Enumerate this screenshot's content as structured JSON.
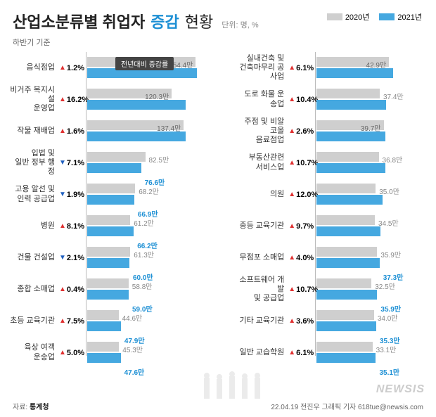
{
  "title": {
    "main": "산업소분류별 취업자",
    "accent": "증감",
    "rest": "현황",
    "unit": "단위: 명, %",
    "subheader": "하반기 기준"
  },
  "legend": {
    "y2020": {
      "label": "2020년",
      "color": "#cfcfcf"
    },
    "y2021": {
      "label": "2021년",
      "color": "#45a8e0"
    }
  },
  "callout": "전년대비 증감률",
  "axis": {
    "left": {
      "min": 0,
      "max": 160,
      "ticks": [
        0,
        50,
        100,
        150
      ]
    },
    "right": {
      "min": 0,
      "max": 50,
      "ticks": [
        0,
        50
      ]
    }
  },
  "colors": {
    "bar2020": "#cfcfcf",
    "bar2021": "#45a8e0",
    "up": "#e03030",
    "down": "#2060c0",
    "text2020": "#888888",
    "text2021": "#1c8fd4"
  },
  "left": [
    {
      "label": "음식점업",
      "pct": "1.2%",
      "dir": "up",
      "v2020": "154.4만",
      "v2021": "156.3만",
      "n2020": 154.4,
      "n2021": 156.3
    },
    {
      "label": "비거주 복지시설\n운영업",
      "pct": "16.2%",
      "dir": "up",
      "v2020": "120.3만",
      "v2021": "139.8만",
      "n2020": 120.3,
      "n2021": 139.8
    },
    {
      "label": "작물 재배업",
      "pct": "1.6%",
      "dir": "up",
      "v2020": "137.4만",
      "v2021": "139.6만",
      "n2020": 137.4,
      "n2021": 139.6
    },
    {
      "label": "입법 및\n일반 정부 행정",
      "pct": "7.1%",
      "dir": "down",
      "v2020": "82.5만",
      "v2021": "76.6만",
      "n2020": 82.5,
      "n2021": 76.6
    },
    {
      "label": "고용 알선 및\n인력 공급업",
      "pct": "1.9%",
      "dir": "down",
      "v2020": "68.2만",
      "v2021": "66.9만",
      "n2020": 68.2,
      "n2021": 66.9
    },
    {
      "label": "병원",
      "pct": "8.1%",
      "dir": "up",
      "v2020": "61.2만",
      "v2021": "66.2만",
      "n2020": 61.2,
      "n2021": 66.2
    },
    {
      "label": "건물 건설업",
      "pct": "2.1%",
      "dir": "down",
      "v2020": "61.3만",
      "v2021": "60.0만",
      "n2020": 61.3,
      "n2021": 60.0
    },
    {
      "label": "종합 소매업",
      "pct": "0.4%",
      "dir": "up",
      "v2020": "58.8만",
      "v2021": "59.0만",
      "n2020": 58.8,
      "n2021": 59.0
    },
    {
      "label": "초등 교육기관",
      "pct": "7.5%",
      "dir": "up",
      "v2020": "44.6만",
      "v2021": "47.9만",
      "n2020": 44.6,
      "n2021": 47.9
    },
    {
      "label": "육상 여객\n운송업",
      "pct": "5.0%",
      "dir": "up",
      "v2020": "45.3만",
      "v2021": "47.6만",
      "n2020": 45.3,
      "n2021": 47.6
    }
  ],
  "right": [
    {
      "label": "실내건축 및\n건축마무리 공사업",
      "pct": "6.1%",
      "dir": "up",
      "v2020": "42.9만",
      "v2021": "45.5만",
      "n2020": 42.9,
      "n2021": 45.5
    },
    {
      "label": "도로 화물 운송업",
      "pct": "10.4%",
      "dir": "up",
      "v2020": "37.4만",
      "v2021": "41.3만",
      "n2020": 37.4,
      "n2021": 41.3
    },
    {
      "label": "주점 및 비알코올\n음료점업",
      "pct": "2.6%",
      "dir": "up",
      "v2020": "39.7만",
      "v2021": "40.8만",
      "n2020": 39.7,
      "n2021": 40.8
    },
    {
      "label": "부동산관련\n서비스업",
      "pct": "10.7%",
      "dir": "up",
      "v2020": "36.8만",
      "v2021": "40.7만",
      "n2020": 36.8,
      "n2021": 40.7
    },
    {
      "label": "의원",
      "pct": "12.0%",
      "dir": "up",
      "v2020": "35.0만",
      "v2021": "39.2만",
      "n2020": 35.0,
      "n2021": 39.2
    },
    {
      "label": "중등 교육기관",
      "pct": "9.7%",
      "dir": "up",
      "v2020": "34.5만",
      "v2021": "37.9만",
      "n2020": 34.5,
      "n2021": 37.9
    },
    {
      "label": "무점포 소매업",
      "pct": "4.0%",
      "dir": "up",
      "v2020": "35.9만",
      "v2021": "37.3만",
      "n2020": 35.9,
      "n2021": 37.3
    },
    {
      "label": "소프트웨어 개발\n및 공급업",
      "pct": "10.7%",
      "dir": "up",
      "v2020": "32.5만",
      "v2021": "35.9만",
      "n2020": 32.5,
      "n2021": 35.9
    },
    {
      "label": "기타 교육기관",
      "pct": "3.6%",
      "dir": "up",
      "v2020": "34.0만",
      "v2021": "35.3만",
      "n2020": 34.0,
      "n2021": 35.3
    },
    {
      "label": "일반 교습학원",
      "pct": "6.1%",
      "dir": "up",
      "v2020": "33.1만",
      "v2021": "35.1만",
      "n2020": 33.1,
      "n2021": 35.1
    }
  ],
  "footer": {
    "source_prefix": "자료:",
    "source": "통계청",
    "credit": "22.04.19 전진우 그래픽 기자 618tue@newsis.com"
  },
  "watermark": "NEWSIS"
}
